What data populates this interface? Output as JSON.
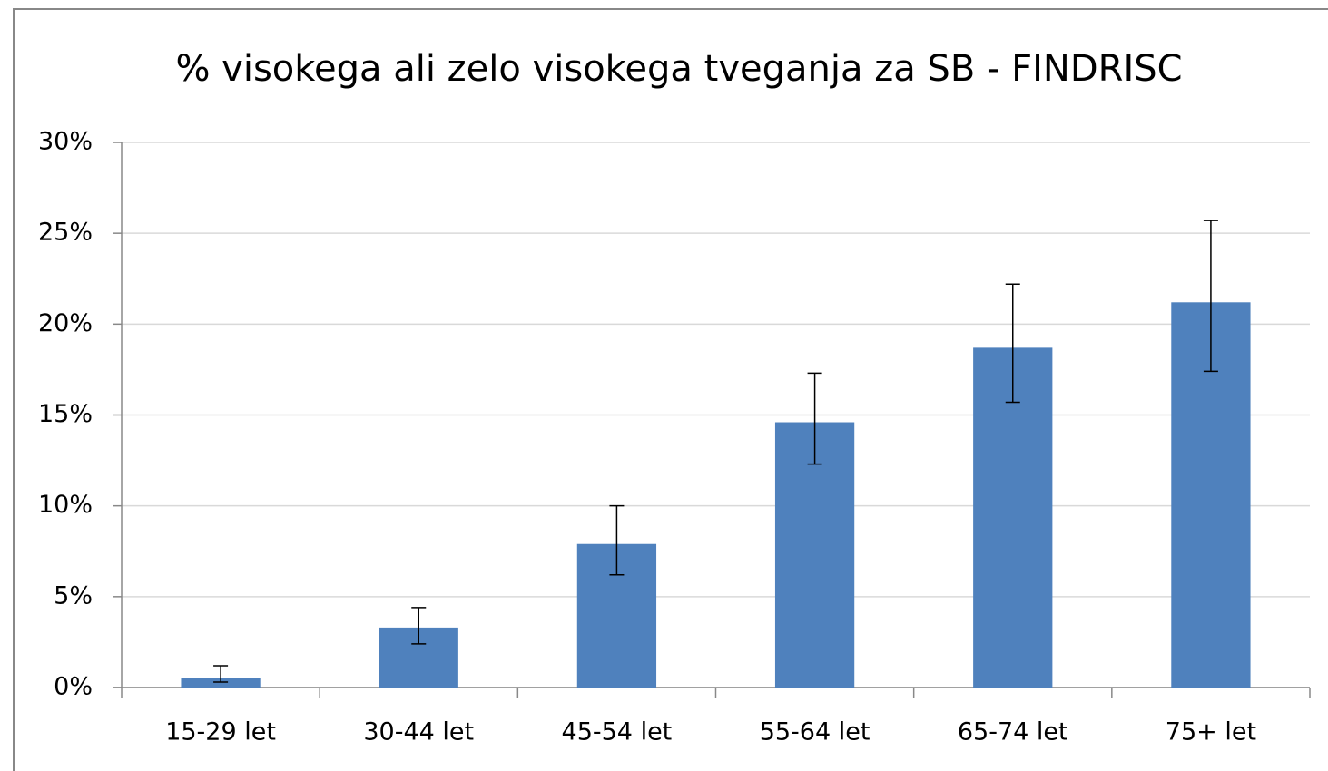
{
  "chart_data": {
    "type": "bar",
    "title": "% visokega ali zelo visokega tveganja za SB - FINDRISC",
    "categories": [
      "15-29 let",
      "30-44 let",
      "45-54 let",
      "55-64 let",
      "65-74 let",
      "75+ let"
    ],
    "values": [
      0.5,
      3.3,
      7.9,
      14.6,
      18.7,
      21.2
    ],
    "error_lower": [
      0.3,
      2.4,
      6.2,
      12.3,
      15.7,
      17.4
    ],
    "error_upper": [
      1.2,
      4.4,
      10.0,
      17.3,
      22.2,
      25.7
    ],
    "color": "#4f81bd",
    "ylim": [
      0,
      30
    ],
    "yticks": [
      {
        "value": 0,
        "label": "0%"
      },
      {
        "value": 5,
        "label": "5%"
      },
      {
        "value": 10,
        "label": "10%"
      },
      {
        "value": 15,
        "label": "15%"
      },
      {
        "value": 20,
        "label": "20%"
      },
      {
        "value": 25,
        "label": "25%"
      },
      {
        "value": 30,
        "label": "30%"
      }
    ],
    "grid": true
  }
}
